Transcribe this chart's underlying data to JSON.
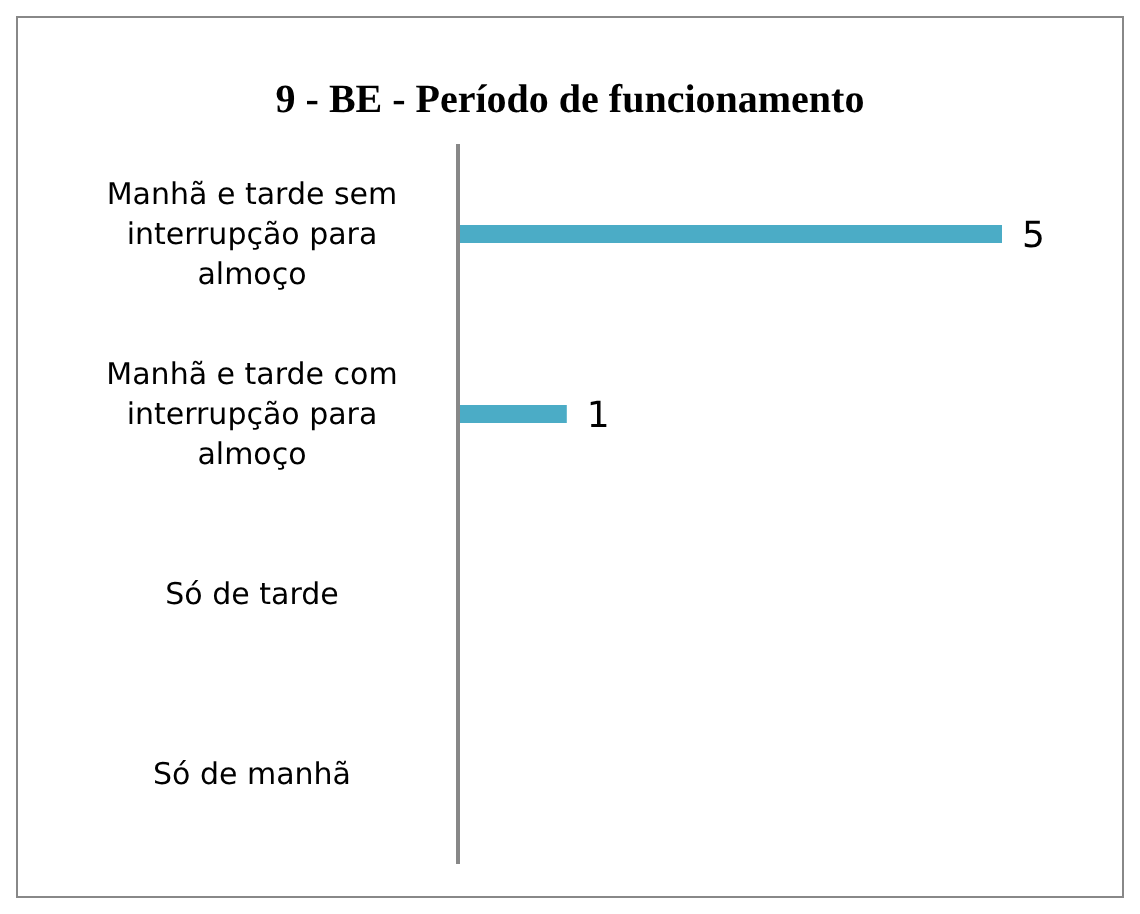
{
  "chart_data": {
    "type": "bar",
    "orientation": "horizontal",
    "title": "9 - BE - Período de funcionamento",
    "categories": [
      "Manhã e tarde sem interrupção para almoço",
      "Manhã e tarde com interrupção para almoço",
      "Só de tarde",
      "Só de manhã"
    ],
    "values": [
      5,
      1,
      0,
      0
    ],
    "value_labels": [
      "5",
      "1",
      null,
      null
    ],
    "color": "#4bacc6"
  }
}
